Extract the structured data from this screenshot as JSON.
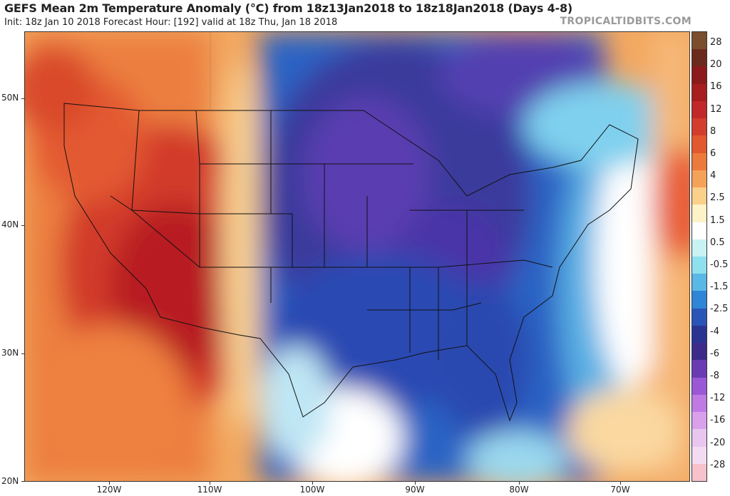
{
  "header": {
    "title": "GEFS Mean 2m Temperature Anomaly (°C) from 18z13Jan2018 to 18z18Jan2018 (Days 4-8)",
    "subtitle": "Init: 18z Jan 10 2018   Forecast Hour: [192]   valid at 18z Thu, Jan 18 2018",
    "credit": "TROPICALTIDBITS.COM"
  },
  "axes": {
    "lat_labels": [
      "50N",
      "40N",
      "30N",
      "20N"
    ],
    "lon_labels": [
      "120W",
      "110W",
      "100W",
      "90W",
      "80W",
      "70W"
    ]
  },
  "colorbar": {
    "labels": [
      "28",
      "20",
      "16",
      "12",
      "8",
      "6",
      "4",
      "2.5",
      "1.5",
      "0.5",
      "-0.5",
      "-1.5",
      "-2.5",
      "-4",
      "-6",
      "-8",
      "-12",
      "-16",
      "-20",
      "-28"
    ],
    "colors": [
      "#7a4e2d",
      "#6b2a1e",
      "#8c1a1a",
      "#a81e1e",
      "#c2282a",
      "#d33d2e",
      "#e2582f",
      "#ec7a3c",
      "#f4a25a",
      "#fad08a",
      "#fdf2c8",
      "#ffffff",
      "#c9f2f4",
      "#8ee0ee",
      "#5ab8e6",
      "#2f86d6",
      "#2a55b8",
      "#2a3592",
      "#3d2a8a",
      "#6a3cb4",
      "#9a58d6",
      "#c07ae4",
      "#d9a0ec",
      "#e9c6f0",
      "#f3dcf2",
      "#f7c2cc"
    ]
  }
}
